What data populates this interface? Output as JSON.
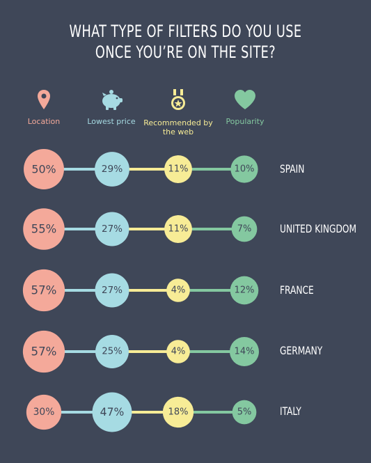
{
  "title_lines": [
    "WHAT TYPE OF FILTERS DO YOU USE",
    "ONCE YOU’RE ON THE SITE?"
  ],
  "colors": {
    "background": "#3f4758",
    "location": "#f4a99a",
    "lowest_price": "#a6dbe3",
    "recommended": "#f7ec96",
    "popularity": "#84c8a0",
    "text_dark": "#3f4758"
  },
  "legend": [
    {
      "label": "Location",
      "icon": "map-pin-icon",
      "color": "#f4a99a"
    },
    {
      "label": "Lowest price",
      "icon": "piggy-bank-icon",
      "color": "#a6dbe3"
    },
    {
      "label": "Recommended by the web",
      "icon": "medal-icon",
      "color": "#f7ec96"
    },
    {
      "label": "Popularity",
      "icon": "heart-icon",
      "color": "#84c8a0"
    }
  ],
  "chart_data": {
    "type": "bubble",
    "categories": [
      "SPAIN",
      "UNITED KINGDOM",
      "FRANCE",
      "GERMANY",
      "ITALY"
    ],
    "series": [
      {
        "name": "Location",
        "values": [
          50,
          55,
          57,
          57,
          30
        ]
      },
      {
        "name": "Lowest price",
        "values": [
          29,
          27,
          27,
          25,
          47
        ]
      },
      {
        "name": "Recommended by the web",
        "values": [
          11,
          11,
          4,
          4,
          18
        ]
      },
      {
        "name": "Popularity",
        "values": [
          10,
          7,
          12,
          14,
          5
        ]
      }
    ],
    "unit": "%"
  }
}
